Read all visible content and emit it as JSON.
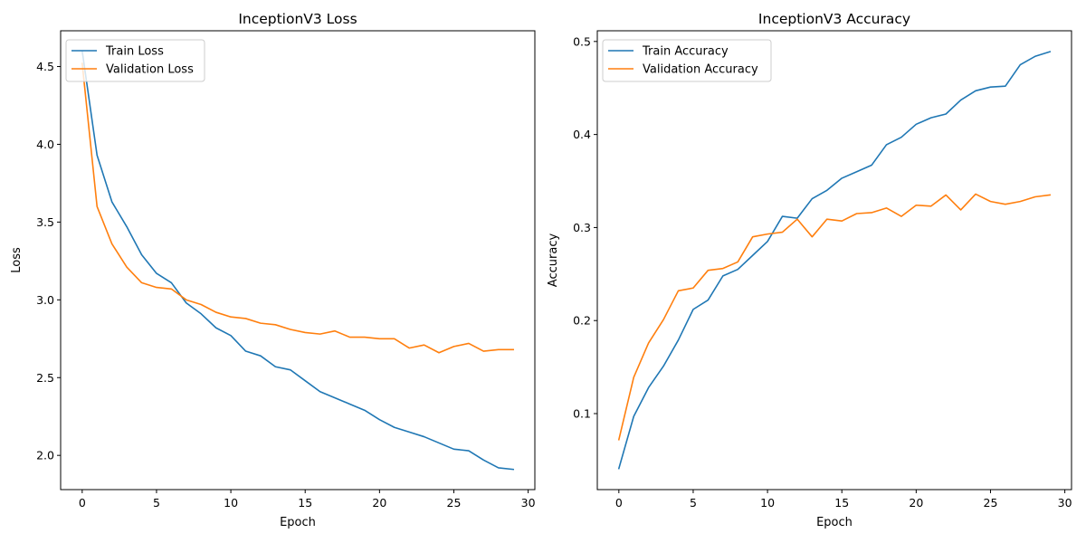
{
  "chart_data": [
    {
      "type": "line",
      "title": "InceptionV3 Loss",
      "xlabel": "Epoch",
      "ylabel": "Loss",
      "xlim": [
        -1.45,
        30.45
      ],
      "ylim": [
        1.78,
        4.73
      ],
      "xticks": [
        0,
        5,
        10,
        15,
        20,
        25,
        30
      ],
      "yticks": [
        2.0,
        2.5,
        3.0,
        3.5,
        4.0,
        4.5
      ],
      "ytick_format": 1,
      "grid": false,
      "legend_position": "upper-left",
      "x": [
        0,
        1,
        2,
        3,
        4,
        5,
        6,
        7,
        8,
        9,
        10,
        11,
        12,
        13,
        14,
        15,
        16,
        17,
        18,
        19,
        20,
        21,
        22,
        23,
        24,
        25,
        26,
        27,
        28,
        29
      ],
      "series": [
        {
          "name": "Train Loss",
          "color": "#1f77b4",
          "values": [
            4.6,
            3.93,
            3.63,
            3.47,
            3.29,
            3.17,
            3.11,
            2.98,
            2.91,
            2.82,
            2.77,
            2.67,
            2.64,
            2.57,
            2.55,
            2.48,
            2.41,
            2.37,
            2.33,
            2.29,
            2.23,
            2.18,
            2.15,
            2.12,
            2.08,
            2.04,
            2.03,
            1.97,
            1.92,
            1.91
          ]
        },
        {
          "name": "Validation Loss",
          "color": "#ff7f0e",
          "values": [
            4.52,
            3.6,
            3.36,
            3.21,
            3.11,
            3.08,
            3.07,
            3.0,
            2.97,
            2.92,
            2.89,
            2.88,
            2.85,
            2.84,
            2.81,
            2.79,
            2.78,
            2.8,
            2.76,
            2.76,
            2.75,
            2.75,
            2.69,
            2.71,
            2.66,
            2.7,
            2.72,
            2.67,
            2.68,
            2.68
          ]
        }
      ]
    },
    {
      "type": "line",
      "title": "InceptionV3 Accuracy",
      "xlabel": "Epoch",
      "ylabel": "Accuracy",
      "xlim": [
        -1.45,
        30.45
      ],
      "ylim": [
        0.0183,
        0.5115
      ],
      "xticks": [
        0,
        5,
        10,
        15,
        20,
        25,
        30
      ],
      "yticks": [
        0.1,
        0.2,
        0.3,
        0.4,
        0.5
      ],
      "ytick_format": 1,
      "grid": false,
      "legend_position": "upper-left",
      "x": [
        0,
        1,
        2,
        3,
        4,
        5,
        6,
        7,
        8,
        9,
        10,
        11,
        12,
        13,
        14,
        15,
        16,
        17,
        18,
        19,
        20,
        21,
        22,
        23,
        24,
        25,
        26,
        27,
        28,
        29
      ],
      "series": [
        {
          "name": "Train Accuracy",
          "color": "#1f77b4",
          "values": [
            0.041,
            0.097,
            0.128,
            0.151,
            0.179,
            0.212,
            0.222,
            0.248,
            0.255,
            0.27,
            0.285,
            0.312,
            0.31,
            0.331,
            0.34,
            0.353,
            0.36,
            0.367,
            0.389,
            0.397,
            0.411,
            0.418,
            0.422,
            0.437,
            0.447,
            0.451,
            0.452,
            0.475,
            0.484,
            0.489
          ]
        },
        {
          "name": "Validation Accuracy",
          "color": "#ff7f0e",
          "values": [
            0.072,
            0.139,
            0.176,
            0.201,
            0.232,
            0.235,
            0.254,
            0.256,
            0.263,
            0.29,
            0.293,
            0.295,
            0.309,
            0.29,
            0.309,
            0.307,
            0.315,
            0.316,
            0.321,
            0.312,
            0.324,
            0.323,
            0.335,
            0.319,
            0.336,
            0.328,
            0.325,
            0.328,
            0.333,
            0.335
          ]
        }
      ]
    }
  ]
}
